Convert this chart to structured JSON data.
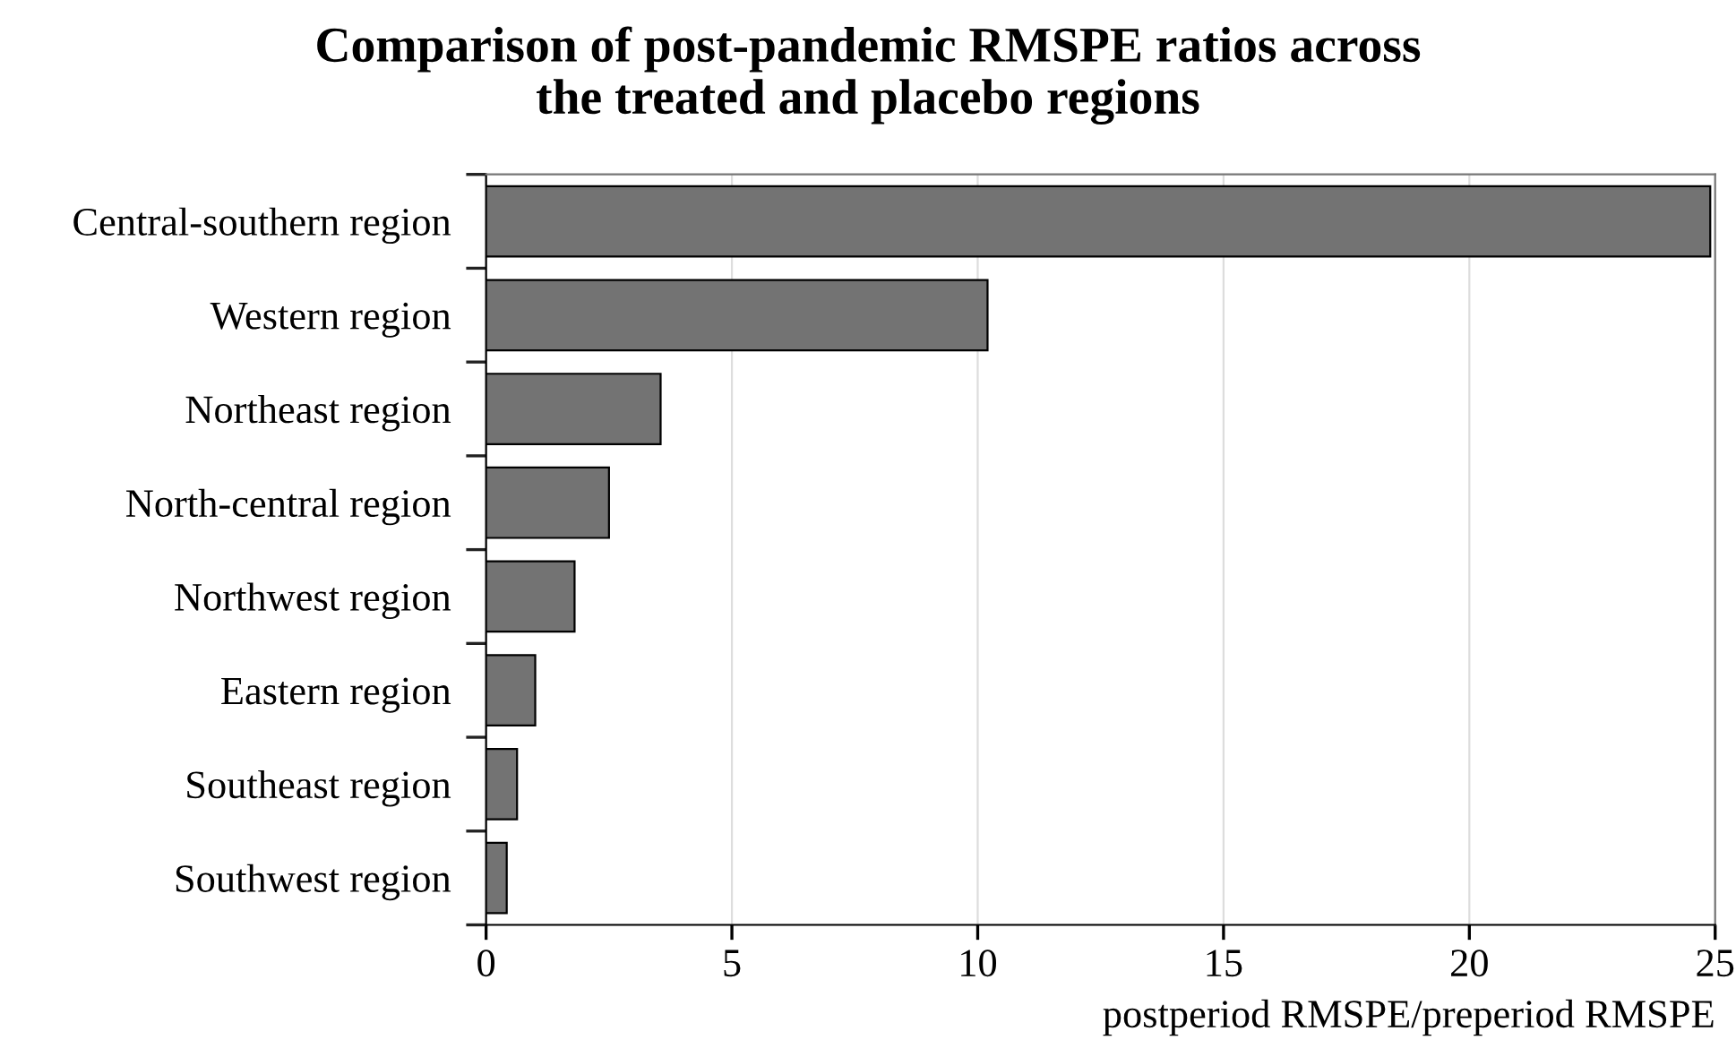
{
  "chart_data": {
    "type": "bar",
    "orientation": "horizontal",
    "title": "Comparison of post-pandemic RMSPE ratios across\nthe treated and placebo regions",
    "xlabel": "postperiod RMSPE/preperiod RMSPE",
    "categories": [
      "Central-southern region",
      "Western region",
      "Northeast region",
      "North-central region",
      "Northwest region",
      "Eastern region",
      "Southeast region",
      "Southwest region"
    ],
    "values": [
      24.9,
      10.2,
      3.55,
      2.5,
      1.8,
      1.0,
      0.63,
      0.42
    ],
    "color": "#737373",
    "xlim": [
      0,
      25
    ],
    "xticks": [
      0,
      5,
      10,
      15,
      20,
      25
    ],
    "grid": "x"
  }
}
